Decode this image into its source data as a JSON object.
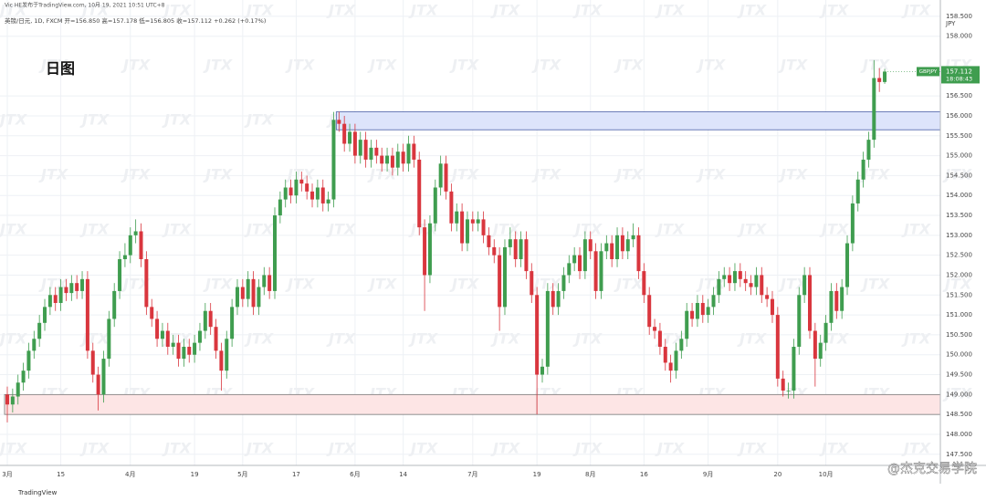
{
  "header": {
    "publisher": "Vic HE发布于TradingView.com, 10月 19, 2021 10:51 UTC+8",
    "symbol_line": "英镑/日元, 1D, FXCM  开=156.850  高=157.178  低=156.805  收=157.112  +0.262 (+0.17%)"
  },
  "chart_data": {
    "type": "candlestick",
    "annotation": "日图",
    "currency": "JPY",
    "watermark": "JTX",
    "brand": "TradingView",
    "credit": "@杰克交易学院",
    "up_color": "#3f9d4f",
    "down_color": "#d9363e",
    "price_tag": {
      "symbol": "GBPJPY",
      "price": 157.112,
      "time": "18:08:43",
      "color": "#3f9d4f"
    },
    "zones": [
      {
        "from": 155.65,
        "to": 156.1,
        "start": 62,
        "color": "#dde4fb",
        "border": "#4a5fa8"
      },
      {
        "from": 148.5,
        "to": 149.0,
        "start": 0,
        "color": "#fde5e5",
        "border": "#777777"
      }
    ],
    "marker_index": 99,
    "ylim": [
      147.22,
      158.91
    ],
    "yticks": [
      {
        "value": 147.5,
        "label": "147.500"
      },
      {
        "value": 148,
        "label": "148.000"
      },
      {
        "value": 148.5,
        "label": "148.500"
      },
      {
        "value": 149,
        "label": "149.000"
      },
      {
        "value": 149.5,
        "label": "149.500"
      },
      {
        "value": 150,
        "label": "150.000"
      },
      {
        "value": 150.5,
        "label": "150.500"
      },
      {
        "value": 151,
        "label": "151.000"
      },
      {
        "value": 151.5,
        "label": "151.500"
      },
      {
        "value": 152,
        "label": "152.000"
      },
      {
        "value": 152.5,
        "label": "152.500"
      },
      {
        "value": 153,
        "label": "153.000"
      },
      {
        "value": 153.5,
        "label": "153.500"
      },
      {
        "value": 154,
        "label": "154.000"
      },
      {
        "value": 154.5,
        "label": "154.500"
      },
      {
        "value": 155,
        "label": "155.000"
      },
      {
        "value": 155.5,
        "label": "155.500"
      },
      {
        "value": 156,
        "label": "156.000"
      },
      {
        "value": 156.5,
        "label": "156.500"
      },
      {
        "value": 158,
        "label": "158.000"
      },
      {
        "value": 158.5,
        "label": "158.500"
      }
    ],
    "xticks": [
      {
        "value": 0,
        "label": "3月"
      },
      {
        "value": 10,
        "label": "15"
      },
      {
        "value": 23,
        "label": "4月"
      },
      {
        "value": 35,
        "label": "19"
      },
      {
        "value": 44,
        "label": "5月"
      },
      {
        "value": 54,
        "label": "17"
      },
      {
        "value": 65,
        "label": "6月"
      },
      {
        "value": 74,
        "label": "14"
      },
      {
        "value": 87,
        "label": "7月"
      },
      {
        "value": 99,
        "label": "19"
      },
      {
        "value": 109,
        "label": "8月"
      },
      {
        "value": 119,
        "label": "16"
      },
      {
        "value": 131,
        "label": "9月"
      },
      {
        "value": 144,
        "label": "20"
      },
      {
        "value": 153,
        "label": "10月"
      }
    ],
    "ohlc": [
      [
        149.0,
        149.2,
        148.3,
        148.75
      ],
      [
        148.75,
        149.15,
        148.55,
        148.95
      ],
      [
        148.95,
        149.5,
        148.75,
        149.3
      ],
      [
        149.3,
        149.8,
        149.1,
        149.6
      ],
      [
        149.6,
        150.3,
        149.4,
        150.1
      ],
      [
        150.1,
        150.6,
        149.9,
        150.4
      ],
      [
        150.4,
        151.0,
        150.2,
        150.8
      ],
      [
        150.8,
        151.4,
        150.6,
        151.2
      ],
      [
        151.2,
        151.7,
        151.0,
        151.5
      ],
      [
        151.5,
        151.7,
        151.1,
        151.3
      ],
      [
        151.3,
        151.9,
        151.1,
        151.7
      ],
      [
        151.7,
        151.9,
        151.35,
        151.55
      ],
      [
        151.55,
        152.0,
        151.35,
        151.8
      ],
      [
        151.8,
        152.0,
        151.4,
        151.6
      ],
      [
        151.6,
        152.1,
        151.4,
        151.9
      ],
      [
        151.9,
        152.1,
        149.9,
        150.1
      ],
      [
        150.1,
        150.3,
        149.3,
        149.5
      ],
      [
        149.5,
        149.7,
        148.6,
        149.0
      ],
      [
        149.0,
        150.1,
        148.8,
        149.9
      ],
      [
        149.9,
        151.1,
        149.7,
        150.9
      ],
      [
        150.9,
        151.8,
        150.7,
        151.6
      ],
      [
        151.6,
        152.6,
        151.4,
        152.4
      ],
      [
        152.4,
        152.8,
        152.2,
        152.5
      ],
      [
        152.5,
        153.2,
        152.3,
        153.0
      ],
      [
        153.0,
        153.4,
        152.8,
        153.1
      ],
      [
        153.1,
        153.3,
        152.2,
        152.4
      ],
      [
        152.4,
        152.6,
        151.0,
        151.2
      ],
      [
        151.2,
        151.4,
        150.7,
        150.9
      ],
      [
        150.9,
        151.1,
        150.2,
        150.4
      ],
      [
        150.4,
        150.8,
        150.2,
        150.6
      ],
      [
        150.6,
        150.8,
        150.0,
        150.2
      ],
      [
        150.2,
        150.5,
        150.0,
        150.3
      ],
      [
        150.3,
        150.5,
        149.7,
        149.9
      ],
      [
        149.9,
        150.4,
        149.7,
        150.2
      ],
      [
        150.2,
        150.4,
        149.8,
        150.0
      ],
      [
        150.0,
        150.5,
        149.8,
        150.3
      ],
      [
        150.3,
        150.8,
        150.1,
        150.6
      ],
      [
        150.6,
        151.3,
        150.4,
        151.1
      ],
      [
        151.1,
        151.3,
        150.5,
        150.7
      ],
      [
        150.7,
        150.9,
        149.9,
        150.1
      ],
      [
        150.1,
        150.3,
        149.1,
        149.6
      ],
      [
        149.6,
        150.6,
        149.4,
        150.4
      ],
      [
        150.4,
        151.4,
        150.2,
        151.2
      ],
      [
        151.2,
        151.9,
        151.0,
        151.7
      ],
      [
        151.7,
        151.9,
        151.2,
        151.4
      ],
      [
        151.4,
        152.1,
        151.2,
        151.9
      ],
      [
        151.9,
        152.1,
        151.0,
        151.2
      ],
      [
        151.2,
        151.9,
        151.0,
        151.7
      ],
      [
        151.7,
        152.2,
        151.5,
        152.0
      ],
      [
        152.0,
        152.2,
        151.4,
        151.6
      ],
      [
        151.6,
        153.7,
        151.4,
        153.5
      ],
      [
        153.5,
        154.1,
        153.3,
        153.9
      ],
      [
        153.9,
        154.4,
        153.7,
        154.2
      ],
      [
        154.2,
        154.4,
        153.8,
        154.0
      ],
      [
        154.0,
        154.6,
        153.8,
        154.4
      ],
      [
        154.4,
        154.6,
        154.1,
        154.3
      ],
      [
        154.3,
        154.5,
        153.9,
        154.1
      ],
      [
        154.1,
        154.3,
        153.7,
        153.9
      ],
      [
        153.9,
        154.4,
        153.7,
        154.2
      ],
      [
        154.2,
        154.4,
        153.6,
        153.8
      ],
      [
        153.8,
        154.1,
        153.6,
        153.9
      ],
      [
        153.9,
        156.1,
        153.7,
        155.9
      ],
      [
        155.9,
        156.1,
        155.6,
        155.8
      ],
      [
        155.8,
        156.0,
        155.1,
        155.3
      ],
      [
        155.3,
        155.8,
        155.1,
        155.6
      ],
      [
        155.6,
        155.8,
        154.8,
        155.0
      ],
      [
        155.0,
        155.6,
        154.8,
        155.4
      ],
      [
        155.4,
        155.6,
        154.7,
        154.9
      ],
      [
        154.9,
        155.4,
        154.7,
        155.2
      ],
      [
        155.2,
        155.4,
        154.8,
        155.0
      ],
      [
        155.0,
        155.2,
        154.6,
        154.8
      ],
      [
        154.8,
        155.2,
        154.6,
        155.0
      ],
      [
        155.0,
        155.2,
        154.5,
        154.7
      ],
      [
        154.7,
        155.3,
        154.5,
        155.1
      ],
      [
        155.1,
        155.3,
        154.6,
        154.8
      ],
      [
        154.8,
        155.5,
        154.6,
        155.3
      ],
      [
        155.3,
        155.5,
        154.7,
        154.9
      ],
      [
        154.9,
        155.1,
        153.0,
        153.2
      ],
      [
        153.2,
        153.4,
        151.1,
        152.0
      ],
      [
        152.0,
        153.5,
        151.8,
        153.3
      ],
      [
        153.3,
        154.4,
        153.1,
        154.2
      ],
      [
        154.2,
        155.0,
        154.0,
        154.8
      ],
      [
        154.8,
        155.0,
        153.9,
        154.1
      ],
      [
        154.1,
        154.3,
        153.1,
        153.3
      ],
      [
        153.3,
        153.8,
        153.1,
        153.6
      ],
      [
        153.6,
        153.8,
        152.6,
        152.8
      ],
      [
        152.8,
        153.6,
        152.6,
        153.4
      ],
      [
        153.4,
        153.6,
        153.1,
        153.3
      ],
      [
        153.3,
        153.6,
        153.1,
        153.4
      ],
      [
        153.4,
        153.6,
        152.8,
        153.0
      ],
      [
        153.0,
        153.2,
        152.5,
        152.7
      ],
      [
        152.7,
        152.9,
        152.3,
        152.5
      ],
      [
        152.5,
        152.7,
        150.6,
        151.2
      ],
      [
        151.2,
        152.9,
        151.0,
        152.7
      ],
      [
        152.7,
        153.2,
        152.5,
        152.9
      ],
      [
        152.9,
        153.1,
        152.2,
        152.4
      ],
      [
        152.4,
        153.1,
        152.2,
        152.9
      ],
      [
        152.9,
        153.1,
        151.9,
        152.1
      ],
      [
        152.1,
        152.3,
        151.3,
        151.5
      ],
      [
        151.5,
        151.7,
        148.5,
        149.5
      ],
      [
        149.5,
        149.9,
        149.3,
        149.7
      ],
      [
        149.7,
        151.8,
        149.5,
        151.6
      ],
      [
        151.6,
        151.8,
        151.0,
        151.2
      ],
      [
        151.2,
        151.8,
        151.0,
        151.6
      ],
      [
        151.6,
        152.2,
        151.4,
        152.0
      ],
      [
        152.0,
        152.5,
        151.8,
        152.3
      ],
      [
        152.3,
        152.7,
        152.1,
        152.5
      ],
      [
        152.5,
        152.7,
        151.9,
        152.1
      ],
      [
        152.1,
        153.1,
        151.9,
        152.9
      ],
      [
        152.9,
        153.1,
        152.4,
        152.6
      ],
      [
        152.6,
        152.8,
        151.4,
        151.6
      ],
      [
        151.6,
        152.8,
        151.4,
        152.6
      ],
      [
        152.6,
        153.0,
        152.4,
        152.8
      ],
      [
        152.8,
        153.0,
        152.2,
        152.4
      ],
      [
        152.4,
        153.2,
        152.2,
        153.0
      ],
      [
        153.0,
        153.2,
        152.4,
        152.6
      ],
      [
        152.6,
        153.1,
        152.4,
        152.9
      ],
      [
        152.9,
        153.3,
        152.7,
        153.0
      ],
      [
        153.0,
        153.2,
        151.9,
        152.1
      ],
      [
        152.1,
        152.3,
        151.3,
        151.5
      ],
      [
        151.5,
        151.7,
        150.5,
        150.7
      ],
      [
        150.7,
        150.9,
        150.4,
        150.6
      ],
      [
        150.6,
        150.8,
        150.0,
        150.2
      ],
      [
        150.2,
        150.4,
        149.6,
        149.8
      ],
      [
        149.8,
        150.0,
        149.3,
        149.6
      ],
      [
        149.6,
        150.3,
        149.4,
        150.1
      ],
      [
        150.1,
        150.6,
        149.9,
        150.4
      ],
      [
        150.4,
        151.3,
        150.2,
        151.1
      ],
      [
        151.1,
        151.3,
        150.7,
        150.9
      ],
      [
        150.9,
        151.5,
        150.7,
        151.3
      ],
      [
        151.3,
        151.5,
        150.8,
        151.0
      ],
      [
        151.0,
        151.4,
        150.8,
        151.2
      ],
      [
        151.2,
        151.7,
        151.0,
        151.5
      ],
      [
        151.5,
        152.1,
        151.3,
        151.9
      ],
      [
        151.9,
        152.2,
        151.7,
        152.0
      ],
      [
        152.0,
        152.2,
        151.6,
        151.8
      ],
      [
        151.8,
        152.3,
        151.6,
        152.1
      ],
      [
        152.1,
        152.3,
        151.7,
        151.9
      ],
      [
        151.9,
        152.1,
        151.6,
        151.8
      ],
      [
        151.8,
        152.0,
        151.5,
        151.7
      ],
      [
        151.7,
        152.2,
        151.5,
        152.0
      ],
      [
        152.0,
        152.2,
        151.3,
        151.5
      ],
      [
        151.5,
        151.7,
        151.2,
        151.4
      ],
      [
        151.4,
        151.6,
        150.8,
        151.0
      ],
      [
        151.0,
        151.2,
        149.2,
        149.4
      ],
      [
        149.4,
        149.6,
        148.95,
        149.1
      ],
      [
        149.1,
        149.3,
        148.9,
        149.1
      ],
      [
        149.1,
        150.4,
        148.9,
        150.2
      ],
      [
        150.2,
        151.7,
        150.0,
        151.5
      ],
      [
        151.5,
        152.2,
        151.3,
        152.0
      ],
      [
        152.0,
        152.2,
        150.4,
        150.6
      ],
      [
        150.6,
        150.8,
        149.2,
        149.9
      ],
      [
        149.9,
        150.5,
        149.7,
        150.3
      ],
      [
        150.3,
        151.0,
        150.1,
        150.8
      ],
      [
        150.8,
        151.8,
        150.6,
        151.6
      ],
      [
        151.6,
        151.8,
        150.9,
        151.1
      ],
      [
        151.1,
        151.9,
        150.9,
        151.7
      ],
      [
        151.7,
        153.0,
        151.5,
        152.8
      ],
      [
        152.8,
        154.0,
        152.6,
        153.8
      ],
      [
        153.8,
        154.6,
        153.6,
        154.4
      ],
      [
        154.4,
        155.1,
        154.2,
        154.9
      ],
      [
        154.9,
        155.6,
        154.7,
        155.4
      ],
      [
        155.4,
        157.4,
        155.2,
        156.95
      ],
      [
        156.95,
        157.2,
        156.6,
        156.85
      ],
      [
        156.85,
        157.178,
        156.805,
        157.112
      ]
    ]
  }
}
